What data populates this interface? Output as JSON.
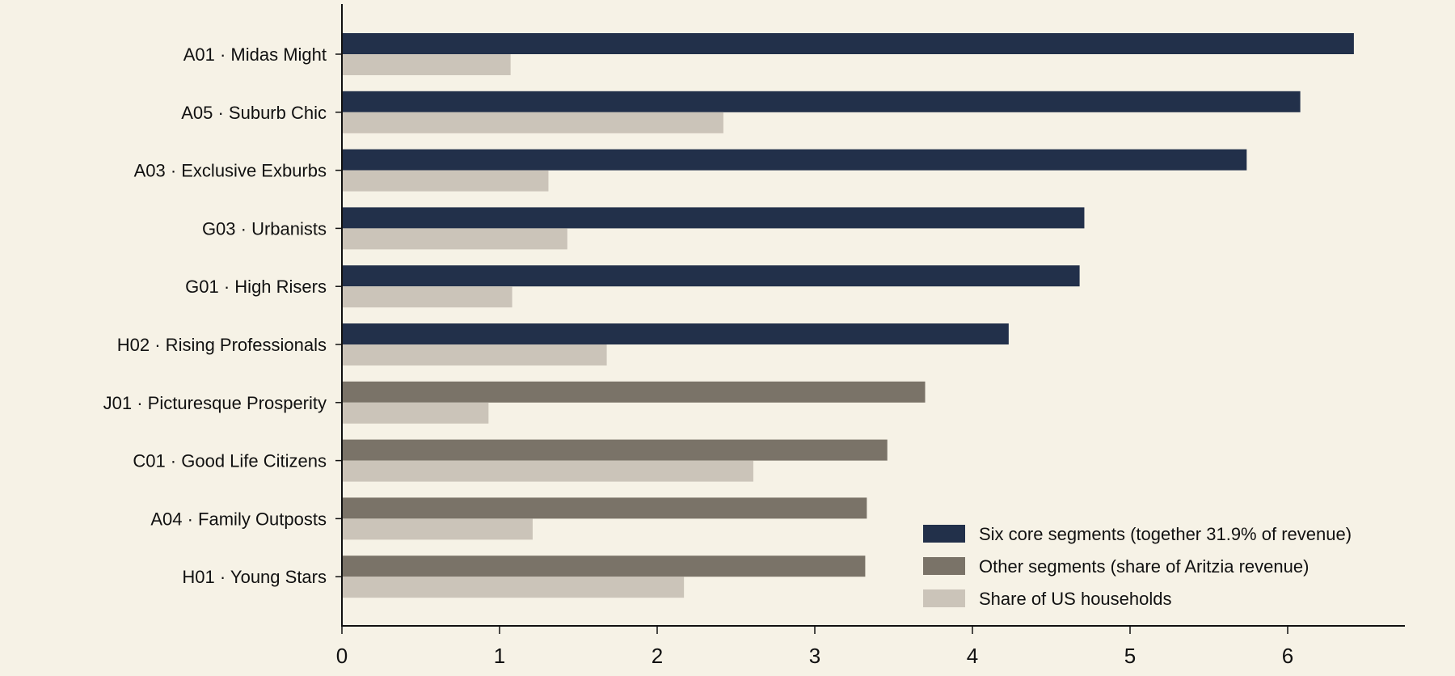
{
  "chart_data": {
    "type": "bar",
    "orientation": "horizontal",
    "categories": [
      "A01 · Midas Might",
      "A05 · Suburb Chic",
      "A03 · Exclusive Exburbs",
      "G03 · Urbanists",
      "G01 · High Risers",
      "H02 · Rising Professionals",
      "J01 · Picturesque Prosperity",
      "C01 · Good Life Citizens",
      "A04 · Family Outposts",
      "H01 · Young Stars"
    ],
    "revenue_share": [
      6.42,
      6.08,
      5.74,
      4.71,
      4.68,
      4.23,
      3.7,
      3.46,
      3.33,
      3.32
    ],
    "revenue_group": [
      "core",
      "core",
      "core",
      "core",
      "core",
      "core",
      "other",
      "other",
      "other",
      "other"
    ],
    "household_share": [
      1.07,
      2.42,
      1.31,
      1.43,
      1.08,
      1.68,
      0.93,
      2.61,
      1.21,
      2.17
    ],
    "series": [
      {
        "name": "Six core segments (together 31.9% of revenue)",
        "color": "#22304a"
      },
      {
        "name": "Other segments (share of Aritzia revenue)",
        "color": "#7a7368"
      },
      {
        "name": "Share of US households",
        "color": "#cbc4b9"
      }
    ],
    "xlim": [
      0,
      6.75
    ],
    "xticks": [
      0,
      1,
      2,
      3,
      4,
      5,
      6
    ],
    "xlabel": "",
    "ylabel": "",
    "title": "",
    "grid": false,
    "legend_position": "bottom-right"
  }
}
